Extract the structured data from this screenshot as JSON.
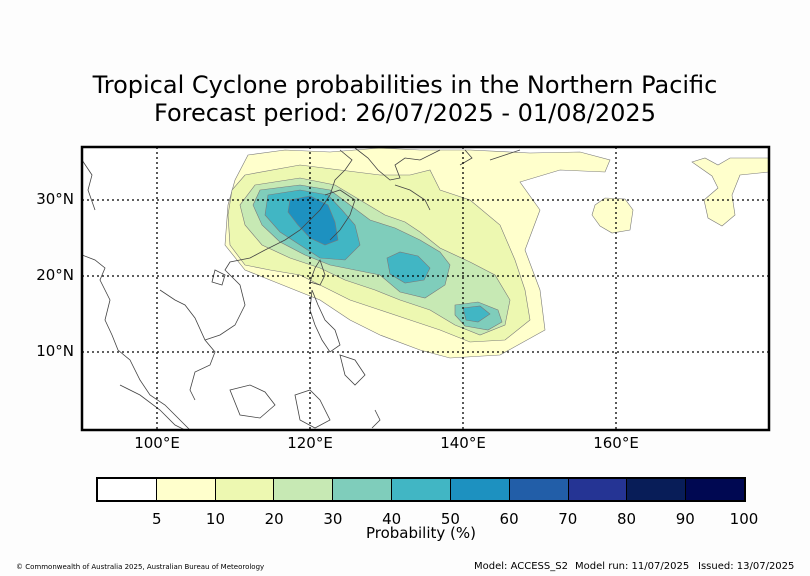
{
  "title_line1": "Tropical Cyclone probabilities in the Northern Pacific",
  "title_line2": "Forecast period: 26/07/2025 - 01/08/2025",
  "map": {
    "lat_labels": [
      "30°N",
      "20°N",
      "10°N"
    ],
    "lon_labels": [
      "100°E",
      "120°E",
      "140°E",
      "160°E"
    ]
  },
  "colorbar": {
    "label": "Probability (%)",
    "ticks": [
      "5",
      "10",
      "20",
      "30",
      "40",
      "50",
      "60",
      "70",
      "80",
      "90",
      "100"
    ],
    "colors": [
      "#ffffff",
      "#ffffcc",
      "#edf8b1",
      "#c7e9b4",
      "#7fcdbb",
      "#41b6c4",
      "#1d91c0",
      "#225ea8",
      "#253494",
      "#081d58",
      "#000852"
    ]
  },
  "footer": {
    "copyright": "© Commonwealth of Australia 2025, Australian Bureau of Meteorology",
    "model": "Model: ACCESS_S2",
    "model_run": "Model run: 11/07/2025",
    "issued": "Issued: 13/07/2025"
  }
}
